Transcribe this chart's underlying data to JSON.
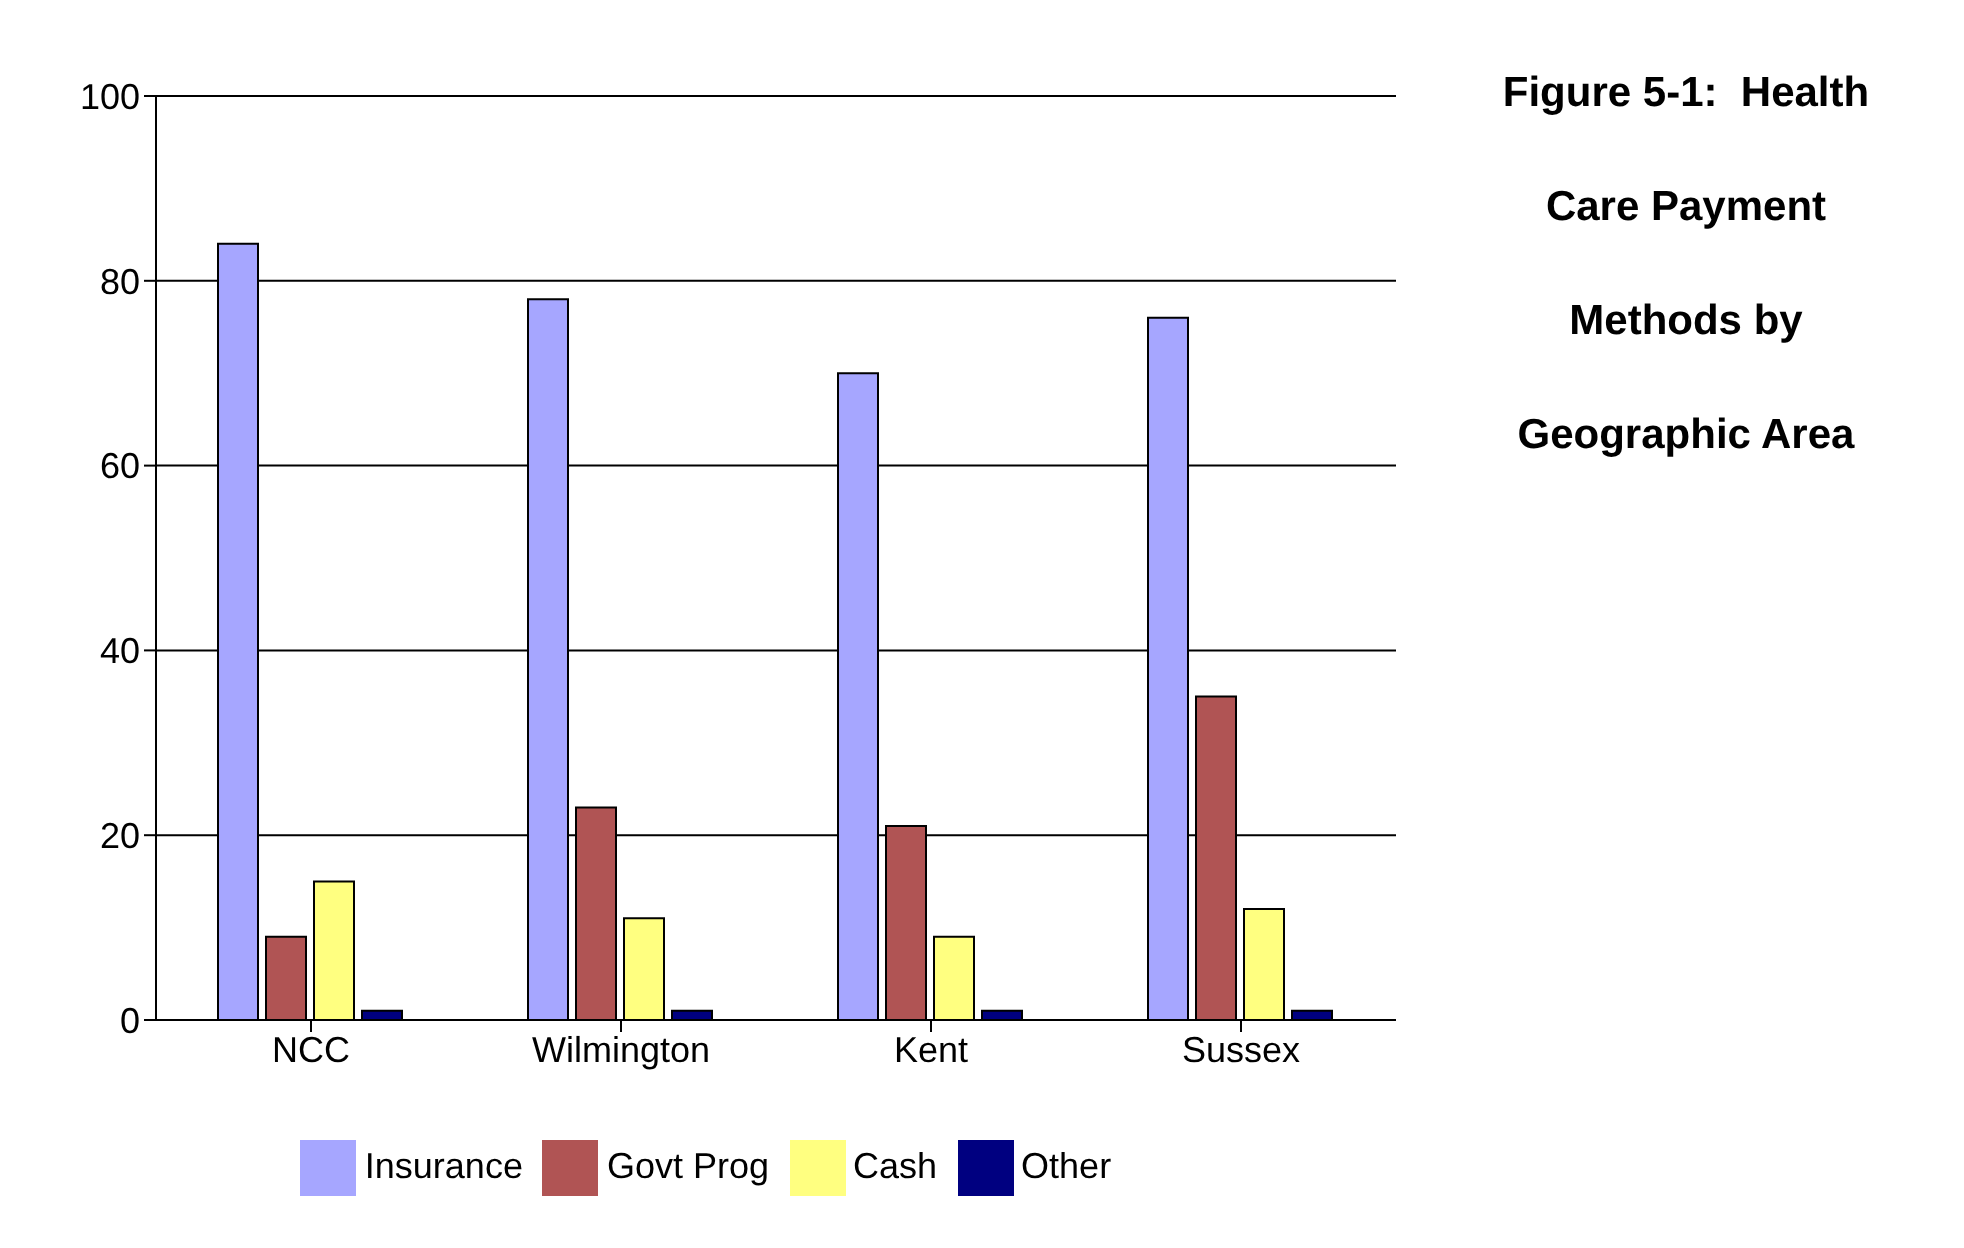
{
  "chart_data": {
    "type": "bar",
    "title": "Figure 5-1:  Health Care Payment Methods by Geographic Area",
    "categories": [
      "NCC",
      "Wilmington",
      "Kent",
      "Sussex"
    ],
    "series": [
      {
        "name": "Insurance",
        "color": "#a6a6ff",
        "values": [
          84,
          78,
          70,
          76
        ]
      },
      {
        "name": "Govt Prog",
        "color": "#b05454",
        "values": [
          9,
          23,
          21,
          35
        ]
      },
      {
        "name": "Cash",
        "color": "#ffff80",
        "values": [
          15,
          11,
          9,
          12
        ]
      },
      {
        "name": "Other",
        "color": "#000080",
        "values": [
          1,
          1,
          1,
          1
        ]
      }
    ],
    "ylim": [
      0,
      100
    ],
    "yticks": [
      0,
      20,
      40,
      60,
      80,
      100
    ],
    "grid": "y",
    "legend": "bottom"
  }
}
